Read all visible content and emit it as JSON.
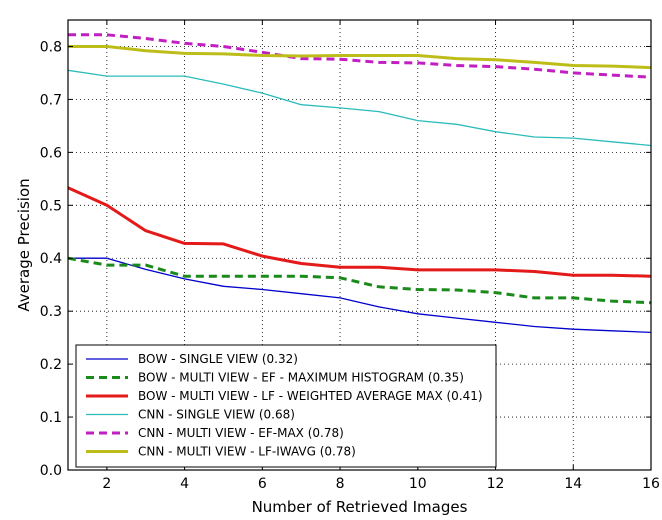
{
  "chart_data": {
    "type": "line",
    "title": "",
    "xlabel": "Number of Retrieved Images",
    "ylabel": "Average Precision",
    "xlim": [
      1,
      16
    ],
    "ylim": [
      0.0,
      0.85
    ],
    "xticks": [
      2,
      4,
      6,
      8,
      10,
      12,
      14,
      16
    ],
    "xtick_labels": [
      "2",
      "4",
      "6",
      "8",
      "10",
      "12",
      "14",
      "16"
    ],
    "yticks": [
      0.0,
      0.1,
      0.2,
      0.3,
      0.4,
      0.5,
      0.6,
      0.7,
      0.8
    ],
    "ytick_labels": [
      "0.0",
      "0.1",
      "0.2",
      "0.3",
      "0.4",
      "0.5",
      "0.6",
      "0.7",
      "0.8"
    ],
    "grid": true,
    "legend_position": "bottom-left",
    "x": [
      1,
      2,
      3,
      4,
      5,
      6,
      7,
      8,
      9,
      10,
      11,
      12,
      13,
      14,
      15,
      16
    ],
    "series": [
      {
        "name": "BOW - SINGLE VIEW (0.32)",
        "color": "#0000cc",
        "style": "solid",
        "width": "thin",
        "values": [
          0.4,
          0.4,
          0.379,
          0.361,
          0.347,
          0.341,
          0.333,
          0.325,
          0.308,
          0.295,
          0.287,
          0.279,
          0.271,
          0.266,
          0.263,
          0.26
        ]
      },
      {
        "name": "BOW - MULTI VIEW - EF - MAXIMUM HISTOGRAM (0.35)",
        "color": "#1a8a1a",
        "style": "dashed",
        "width": "thick",
        "values": [
          0.4,
          0.387,
          0.387,
          0.366,
          0.366,
          0.366,
          0.366,
          0.363,
          0.346,
          0.341,
          0.34,
          0.335,
          0.325,
          0.325,
          0.319,
          0.316
        ]
      },
      {
        "name": "BOW - MULTI VIEW - LF - WEIGHTED AVERAGE MAX (0.41)",
        "color": "#e41a1a",
        "style": "solid",
        "width": "thick",
        "values": [
          0.533,
          0.5,
          0.452,
          0.428,
          0.427,
          0.404,
          0.39,
          0.383,
          0.383,
          0.378,
          0.378,
          0.378,
          0.375,
          0.368,
          0.368,
          0.366
        ]
      },
      {
        "name": "CNN - SINGLE VIEW (0.68)",
        "color": "#2bbcbc",
        "style": "solid",
        "width": "thin",
        "values": [
          0.755,
          0.744,
          0.744,
          0.744,
          0.729,
          0.712,
          0.69,
          0.684,
          0.677,
          0.66,
          0.653,
          0.639,
          0.629,
          0.627,
          0.62,
          0.613
        ]
      },
      {
        "name": "CNN - MULTI VIEW - EF-MAX (0.78)",
        "color": "#c21fc2",
        "style": "dashed",
        "width": "thick",
        "values": [
          0.822,
          0.822,
          0.815,
          0.806,
          0.8,
          0.789,
          0.777,
          0.776,
          0.77,
          0.769,
          0.764,
          0.762,
          0.757,
          0.75,
          0.746,
          0.742
        ]
      },
      {
        "name": "CNN - MULTI VIEW - LF-IWAVG (0.78)",
        "color": "#bdbd1a",
        "style": "solid",
        "width": "thick",
        "values": [
          0.8,
          0.8,
          0.792,
          0.787,
          0.786,
          0.783,
          0.782,
          0.783,
          0.783,
          0.783,
          0.777,
          0.775,
          0.77,
          0.764,
          0.763,
          0.76
        ]
      }
    ]
  }
}
